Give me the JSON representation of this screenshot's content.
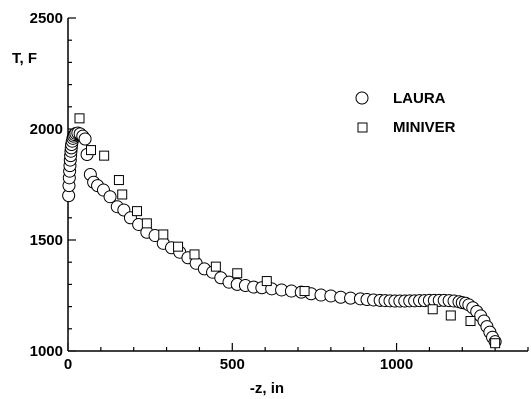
{
  "chart_data": {
    "type": "scatter",
    "xlabel": "-z, in",
    "ylabel": "T, F",
    "xlim": [
      0,
      1400
    ],
    "ylim": [
      1000,
      2500
    ],
    "x_ticks": [
      0,
      500,
      1000
    ],
    "y_ticks": [
      1000,
      1500,
      2000,
      2500
    ],
    "grid": false,
    "legend_position": "top-right",
    "series": [
      {
        "name": "LAURA",
        "marker": "circle",
        "points": [
          [
            2,
            1700
          ],
          [
            3,
            1745
          ],
          [
            4,
            1780
          ],
          [
            5,
            1810
          ],
          [
            6,
            1835
          ],
          [
            7,
            1860
          ],
          [
            8,
            1880
          ],
          [
            9,
            1900
          ],
          [
            10,
            1915
          ],
          [
            11,
            1930
          ],
          [
            13,
            1945
          ],
          [
            15,
            1958
          ],
          [
            17,
            1968
          ],
          [
            20,
            1975
          ],
          [
            24,
            1980
          ],
          [
            30,
            1982
          ],
          [
            37,
            1978
          ],
          [
            45,
            1968
          ],
          [
            52,
            1955
          ],
          [
            58,
            1885
          ],
          [
            68,
            1795
          ],
          [
            78,
            1760
          ],
          [
            90,
            1745
          ],
          [
            108,
            1725
          ],
          [
            128,
            1695
          ],
          [
            150,
            1650
          ],
          [
            170,
            1635
          ],
          [
            190,
            1600
          ],
          [
            215,
            1570
          ],
          [
            240,
            1535
          ],
          [
            265,
            1520
          ],
          [
            290,
            1485
          ],
          [
            315,
            1465
          ],
          [
            340,
            1445
          ],
          [
            365,
            1420
          ],
          [
            390,
            1395
          ],
          [
            415,
            1370
          ],
          [
            440,
            1355
          ],
          [
            465,
            1330
          ],
          [
            490,
            1310
          ],
          [
            515,
            1300
          ],
          [
            540,
            1295
          ],
          [
            565,
            1288
          ],
          [
            590,
            1285
          ],
          [
            620,
            1280
          ],
          [
            650,
            1275
          ],
          [
            680,
            1270
          ],
          [
            710,
            1265
          ],
          [
            740,
            1258
          ],
          [
            770,
            1252
          ],
          [
            800,
            1248
          ],
          [
            830,
            1242
          ],
          [
            860,
            1238
          ],
          [
            890,
            1235
          ],
          [
            910,
            1232
          ],
          [
            930,
            1230
          ],
          [
            950,
            1228
          ],
          [
            965,
            1227
          ],
          [
            980,
            1226
          ],
          [
            995,
            1225
          ],
          [
            1010,
            1225
          ],
          [
            1025,
            1225
          ],
          [
            1040,
            1226
          ],
          [
            1055,
            1226
          ],
          [
            1070,
            1227
          ],
          [
            1085,
            1227
          ],
          [
            1100,
            1228
          ],
          [
            1115,
            1228
          ],
          [
            1130,
            1228
          ],
          [
            1145,
            1228
          ],
          [
            1160,
            1227
          ],
          [
            1175,
            1225
          ],
          [
            1190,
            1222
          ],
          [
            1200,
            1218
          ],
          [
            1210,
            1215
          ],
          [
            1220,
            1208
          ],
          [
            1232,
            1195
          ],
          [
            1244,
            1178
          ],
          [
            1256,
            1158
          ],
          [
            1266,
            1135
          ],
          [
            1275,
            1110
          ],
          [
            1284,
            1085
          ],
          [
            1292,
            1062
          ],
          [
            1300,
            1042
          ]
        ]
      },
      {
        "name": "MINIVER",
        "marker": "square",
        "points": [
          [
            35,
            2048
          ],
          [
            70,
            1905
          ],
          [
            110,
            1880
          ],
          [
            155,
            1770
          ],
          [
            165,
            1705
          ],
          [
            210,
            1630
          ],
          [
            240,
            1575
          ],
          [
            290,
            1525
          ],
          [
            335,
            1470
          ],
          [
            385,
            1435
          ],
          [
            450,
            1380
          ],
          [
            515,
            1350
          ],
          [
            605,
            1315
          ],
          [
            720,
            1270
          ],
          [
            1110,
            1188
          ],
          [
            1165,
            1160
          ],
          [
            1225,
            1135
          ],
          [
            1300,
            1035
          ]
        ]
      }
    ]
  }
}
